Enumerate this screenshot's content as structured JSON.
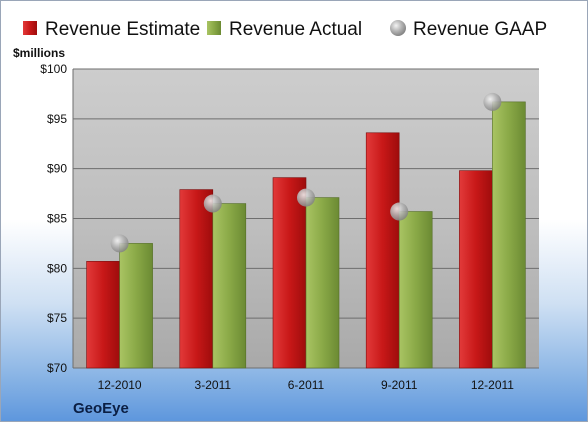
{
  "chart_data": {
    "type": "bar",
    "title": "",
    "ylabel": "$millions",
    "xlabel": "",
    "ylim": [
      70,
      100
    ],
    "yticks": [
      70,
      75,
      80,
      85,
      90,
      95,
      100
    ],
    "ytick_labels": [
      "$70",
      "$75",
      "$80",
      "$85",
      "$90",
      "$95",
      "$100"
    ],
    "categories": [
      "12-2010",
      "3-2011",
      "6-2011",
      "9-2011",
      "12-2011"
    ],
    "series": [
      {
        "name": "Revenue Estimate",
        "kind": "bar",
        "values": [
          80.7,
          87.9,
          89.1,
          93.6,
          89.8
        ],
        "color": "#cc1f1f"
      },
      {
        "name": "Revenue Actual",
        "kind": "bar",
        "values": [
          82.5,
          86.5,
          87.1,
          85.7,
          96.7
        ],
        "color": "#8fae4a"
      },
      {
        "name": "Revenue GAAP",
        "kind": "marker",
        "values": [
          82.5,
          86.5,
          87.1,
          85.7,
          96.7
        ],
        "color": "#a8a8a8"
      }
    ],
    "legend_position": "top",
    "grid": true
  },
  "brand": "GeoEye"
}
